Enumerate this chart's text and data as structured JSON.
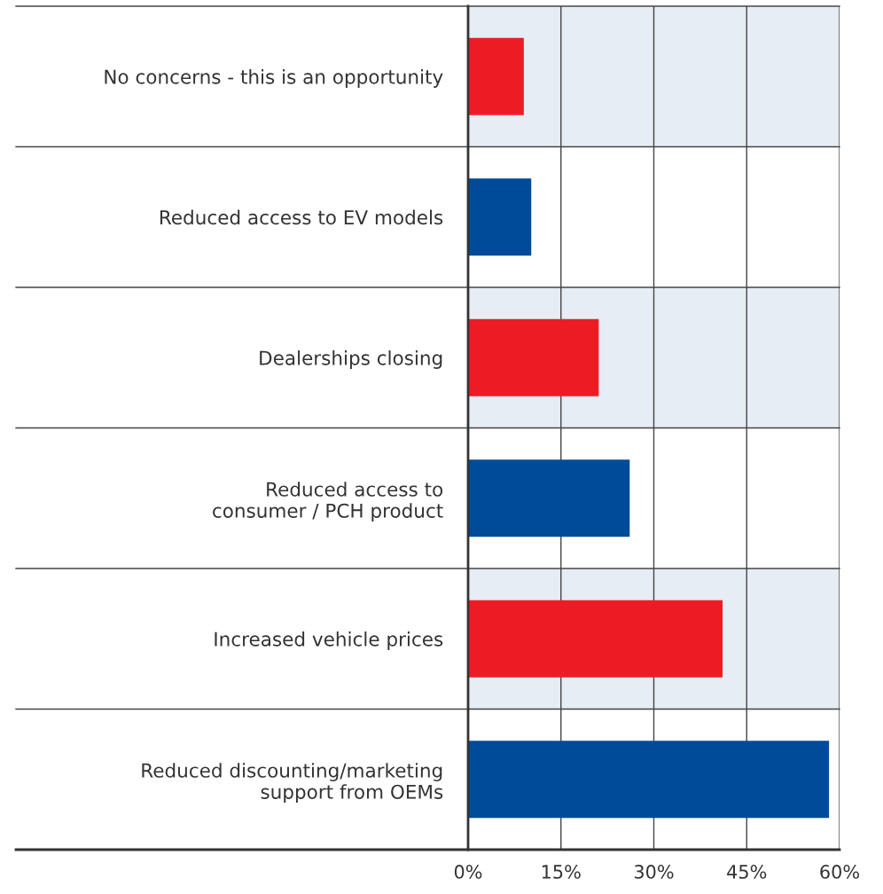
{
  "chart_data": {
    "type": "bar",
    "orientation": "horizontal",
    "categories": [
      "No concerns - this is an opportunity",
      "Reduced access to EV models",
      "Dealerships closing",
      "Reduced access to\nconsumer / PCH product",
      "Increased vehicle prices",
      "Reduced discounting/marketing\nsupport from OEMs"
    ],
    "values": [
      9.0,
      10.2,
      21.1,
      26.1,
      41.1,
      58.3
    ],
    "colors": [
      "#ed1c24",
      "#004b99",
      "#ed1c24",
      "#004b99",
      "#ed1c24",
      "#004b99"
    ],
    "xlim": [
      0,
      60
    ],
    "xticks": [
      {
        "value": 0,
        "label": "0%"
      },
      {
        "value": 15,
        "label": "15%"
      },
      {
        "value": 30,
        "label": "30%"
      },
      {
        "value": 45,
        "label": "45%"
      },
      {
        "value": 60,
        "label": "60%"
      }
    ],
    "grid": "x",
    "bands": [
      {
        "axis": "y",
        "from": "No concerns - this is an opportunity",
        "to": "No concerns - this is an opportunity",
        "color": "#e6edf5"
      },
      {
        "axis": "y",
        "from": "Dealerships closing",
        "to": "Dealerships closing",
        "color": "#e6edf5"
      },
      {
        "axis": "y",
        "from": "Increased vehicle prices",
        "to": "Increased vehicle prices",
        "color": "#e6edf5"
      }
    ]
  }
}
